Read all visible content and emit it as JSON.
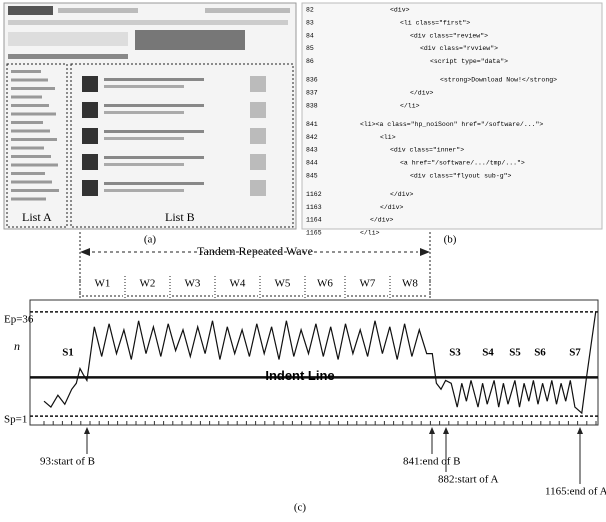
{
  "panel_a": {
    "list_a": "List A",
    "list_b": "List B",
    "caption": "(a)"
  },
  "panel_b": {
    "caption": "(b)",
    "lines": [
      {
        "no": "82",
        "code": "<div>"
      },
      {
        "no": "83",
        "code": "<li class=\"first\">"
      },
      {
        "no": "84",
        "code": "<div class=\"review\">"
      },
      {
        "no": "85",
        "code": "<div class=\"rvview\">"
      },
      {
        "no": "86",
        "code": "<script type=\"data\">"
      },
      {
        "no": "836",
        "code": "<strong>Download Now!</strong>"
      },
      {
        "no": "837",
        "code": "</div>"
      },
      {
        "no": "838",
        "code": "</li>"
      },
      {
        "no": "841",
        "code": "<li><a class=\"hp_noiSoon\" href=\"/software/...\">"
      },
      {
        "no": "842",
        "code": "<li>"
      },
      {
        "no": "843",
        "code": "<div class=\"inner\">"
      },
      {
        "no": "844",
        "code": "<a href=\"/software/.../tmp/...\">"
      },
      {
        "no": "845",
        "code": "<div class=\"flyout sub-g\">"
      },
      {
        "no": "1162",
        "code": "</div>"
      },
      {
        "no": "1163",
        "code": "</div>"
      },
      {
        "no": "1164",
        "code": "</div>"
      },
      {
        "no": "1165",
        "code": "</li>"
      }
    ]
  },
  "chart_data": {
    "type": "line",
    "title": "Tandem Repeated Wave",
    "caption": "(c)",
    "color": "#111111",
    "waves": [
      "W1",
      "W2",
      "W3",
      "W4",
      "W5",
      "W6",
      "W7",
      "W8"
    ],
    "x": [
      0,
      15,
      30,
      45,
      60,
      70,
      78,
      85,
      93,
      109,
      125,
      141,
      157,
      173,
      189,
      205,
      221,
      237,
      253,
      269,
      285,
      301,
      317,
      333,
      349,
      365,
      381,
      397,
      413,
      429,
      445,
      461,
      477,
      493,
      509,
      525,
      541,
      557,
      573,
      589,
      605,
      621,
      637,
      653,
      669,
      685,
      701,
      717,
      733,
      749,
      765,
      781,
      797,
      813,
      829,
      841,
      850,
      860,
      870,
      882,
      895,
      905,
      915,
      925,
      940,
      950,
      960,
      975,
      985,
      995,
      1005,
      1020,
      1030,
      1040,
      1050,
      1060,
      1070,
      1080,
      1090,
      1100,
      1110,
      1120,
      1130,
      1140,
      1150,
      1165,
      1175,
      1185,
      1195
    ],
    "values": [
      6,
      4,
      8,
      5,
      10,
      12,
      17,
      15,
      13,
      31,
      21,
      32,
      22,
      30,
      20,
      33,
      22,
      31,
      21,
      32,
      23,
      30,
      21,
      31,
      22,
      33,
      20,
      31,
      22,
      30,
      21,
      32,
      22,
      31,
      20,
      33,
      21,
      30,
      22,
      32,
      21,
      31,
      20,
      32,
      22,
      30,
      21,
      33,
      22,
      31,
      20,
      32,
      21,
      30,
      22,
      22,
      12,
      10,
      13,
      12,
      4,
      12,
      6,
      13,
      4,
      12,
      5,
      13,
      4,
      12,
      5,
      13,
      4,
      12,
      6,
      13,
      5,
      12,
      6,
      13,
      5,
      12,
      6,
      13,
      4,
      2,
      14,
      25,
      36
    ],
    "xlim": [
      0,
      1200
    ],
    "ylim": [
      -2,
      40
    ],
    "hlines": [
      {
        "label": "Ep=36",
        "value": 36
      },
      {
        "label": "Sp=1",
        "value": 1
      },
      {
        "label": "Indent Line",
        "value": 14
      }
    ],
    "n_label": "n",
    "segments": [
      "S1",
      "S3",
      "S4",
      "S5",
      "S6",
      "S7"
    ],
    "annotations": [
      "93:start of B",
      "841:end of B",
      "882:start of A",
      "1165:end of A"
    ]
  }
}
